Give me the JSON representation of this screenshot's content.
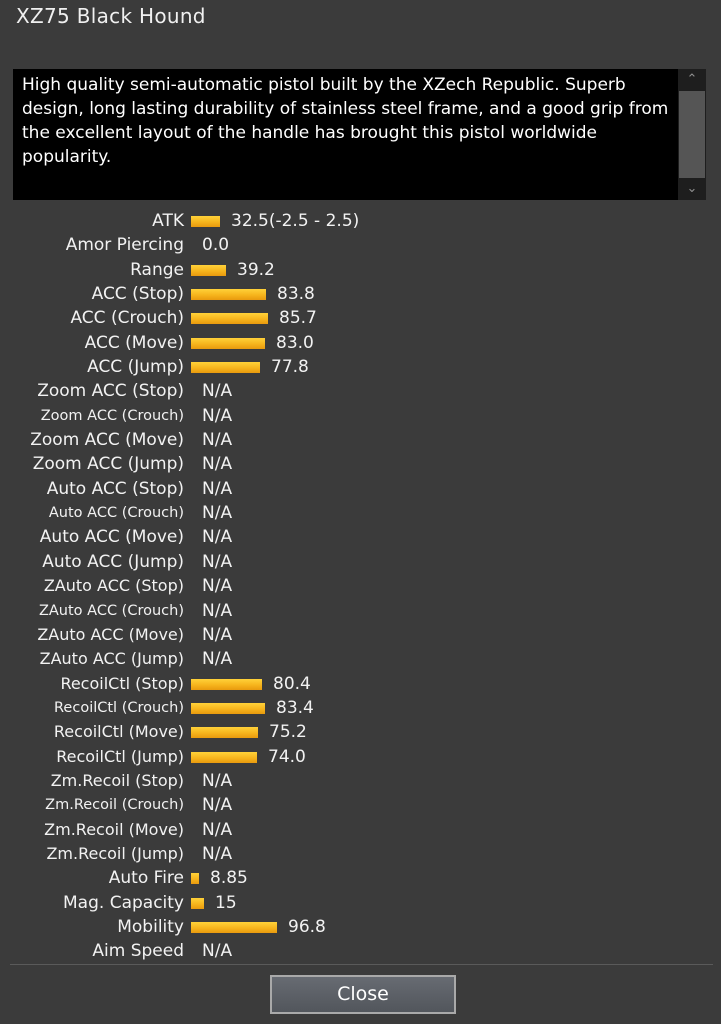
{
  "window": {
    "title": "XZ75 Black Hound"
  },
  "description": {
    "text": "High quality semi-automatic pistol built by the XZech Republic. Superb design, long lasting durability of stainless steel frame, and a good grip from the excellent layout of the handle has brought this pistol worldwide popularity."
  },
  "stats": [
    {
      "label": "ATK",
      "value": "32.5(-2.5 - 2.5)",
      "bar": 29
    },
    {
      "label": "Amor Piercing",
      "value": "0.0",
      "bar": 0
    },
    {
      "label": "Range",
      "value": "39.2",
      "bar": 35
    },
    {
      "label": "ACC (Stop)",
      "value": "83.8",
      "bar": 75
    },
    {
      "label": "ACC (Crouch)",
      "value": "85.7",
      "bar": 77
    },
    {
      "label": "ACC (Move)",
      "value": "83.0",
      "bar": 74
    },
    {
      "label": "ACC (Jump)",
      "value": "77.8",
      "bar": 69
    },
    {
      "label": "Zoom ACC (Stop)",
      "value": "N/A",
      "bar": 0
    },
    {
      "label": "Zoom ACC (Crouch)",
      "value": "N/A",
      "bar": 0
    },
    {
      "label": "Zoom ACC (Move)",
      "value": "N/A",
      "bar": 0
    },
    {
      "label": "Zoom ACC (Jump)",
      "value": "N/A",
      "bar": 0
    },
    {
      "label": "Auto ACC (Stop)",
      "value": "N/A",
      "bar": 0
    },
    {
      "label": "Auto ACC (Crouch)",
      "value": "N/A",
      "bar": 0
    },
    {
      "label": "Auto ACC (Move)",
      "value": "N/A",
      "bar": 0
    },
    {
      "label": "Auto ACC (Jump)",
      "value": "N/A",
      "bar": 0
    },
    {
      "label": "ZAuto ACC (Stop)",
      "value": "N/A",
      "bar": 0
    },
    {
      "label": "ZAuto ACC (Crouch)",
      "value": "N/A",
      "bar": 0
    },
    {
      "label": "ZAuto ACC (Move)",
      "value": "N/A",
      "bar": 0
    },
    {
      "label": "ZAuto ACC (Jump)",
      "value": "N/A",
      "bar": 0
    },
    {
      "label": "RecoilCtl (Stop)",
      "value": "80.4",
      "bar": 71
    },
    {
      "label": "RecoilCtl (Crouch)",
      "value": "83.4",
      "bar": 74
    },
    {
      "label": "RecoilCtl (Move)",
      "value": "75.2",
      "bar": 67
    },
    {
      "label": "RecoilCtl (Jump)",
      "value": "74.0",
      "bar": 66
    },
    {
      "label": "Zm.Recoil (Stop)",
      "value": "N/A",
      "bar": 0
    },
    {
      "label": "Zm.Recoil (Crouch)",
      "value": "N/A",
      "bar": 0
    },
    {
      "label": "Zm.Recoil (Move)",
      "value": "N/A",
      "bar": 0
    },
    {
      "label": "Zm.Recoil (Jump)",
      "value": "N/A",
      "bar": 0
    },
    {
      "label": "Auto Fire",
      "value": "8.85",
      "bar": 8
    },
    {
      "label": "Mag. Capacity",
      "value": "15",
      "bar": 13
    },
    {
      "label": "Mobility",
      "value": "96.8",
      "bar": 86
    },
    {
      "label": "Aim Speed",
      "value": "N/A",
      "bar": 0
    }
  ],
  "footer": {
    "close_label": "Close"
  },
  "icons": {
    "scroll_up": "chevron-up-icon",
    "scroll_down": "chevron-down-icon"
  },
  "colors": {
    "bar": "#f6b41c",
    "background": "#3b3b3b",
    "description_bg": "#000000"
  }
}
